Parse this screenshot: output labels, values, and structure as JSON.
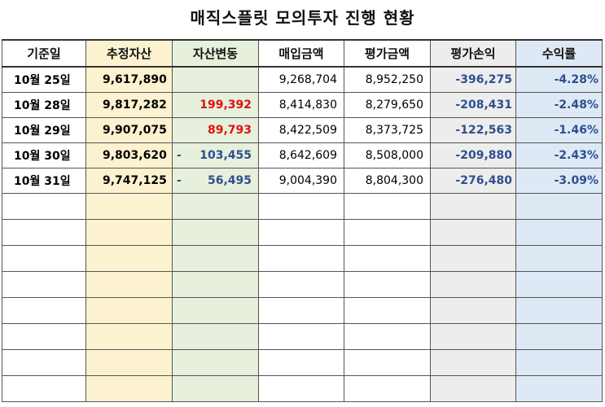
{
  "title": "매직스플릿 모의투자 진행 현황",
  "headers": [
    "기준일",
    "추정자산",
    "자산변동",
    "매입금액",
    "평가금액",
    "평가손익",
    "수익률"
  ],
  "rows": [
    {
      "date": "10월 25일",
      "estimated": "9,617,890",
      "change_sign": "",
      "change": "",
      "change_dir": "none",
      "purchase": "9,268,704",
      "valuation": "8,952,250",
      "pl": "-396,275",
      "rate": "-4.28%"
    },
    {
      "date": "10월 28일",
      "estimated": "9,817,282",
      "change_sign": "",
      "change": "199,392",
      "change_dir": "up",
      "purchase": "8,414,830",
      "valuation": "8,279,650",
      "pl": "-208,431",
      "rate": "-2.48%"
    },
    {
      "date": "10월 29일",
      "estimated": "9,907,075",
      "change_sign": "",
      "change": "89,793",
      "change_dir": "up",
      "purchase": "8,422,509",
      "valuation": "8,373,725",
      "pl": "-122,563",
      "rate": "-1.46%"
    },
    {
      "date": "10월 30일",
      "estimated": "9,803,620",
      "change_sign": "-",
      "change": "103,455",
      "change_dir": "down",
      "purchase": "8,642,609",
      "valuation": "8,508,000",
      "pl": "-209,880",
      "rate": "-2.43%"
    },
    {
      "date": "10월 31일",
      "estimated": "9,747,125",
      "change_sign": "-",
      "change": "56,495",
      "change_dir": "down",
      "purchase": "9,004,390",
      "valuation": "8,804,300",
      "pl": "-276,480",
      "rate": "-3.09%"
    }
  ],
  "empty_rows": 8,
  "colors": {
    "estimated_bg": "#fdf2d0",
    "change_bg": "#e6f0dc",
    "pl_bg": "#ededed",
    "rate_bg": "#dde9f5",
    "positive_change": "#e01010",
    "negative_value": "#2f4f8f"
  }
}
